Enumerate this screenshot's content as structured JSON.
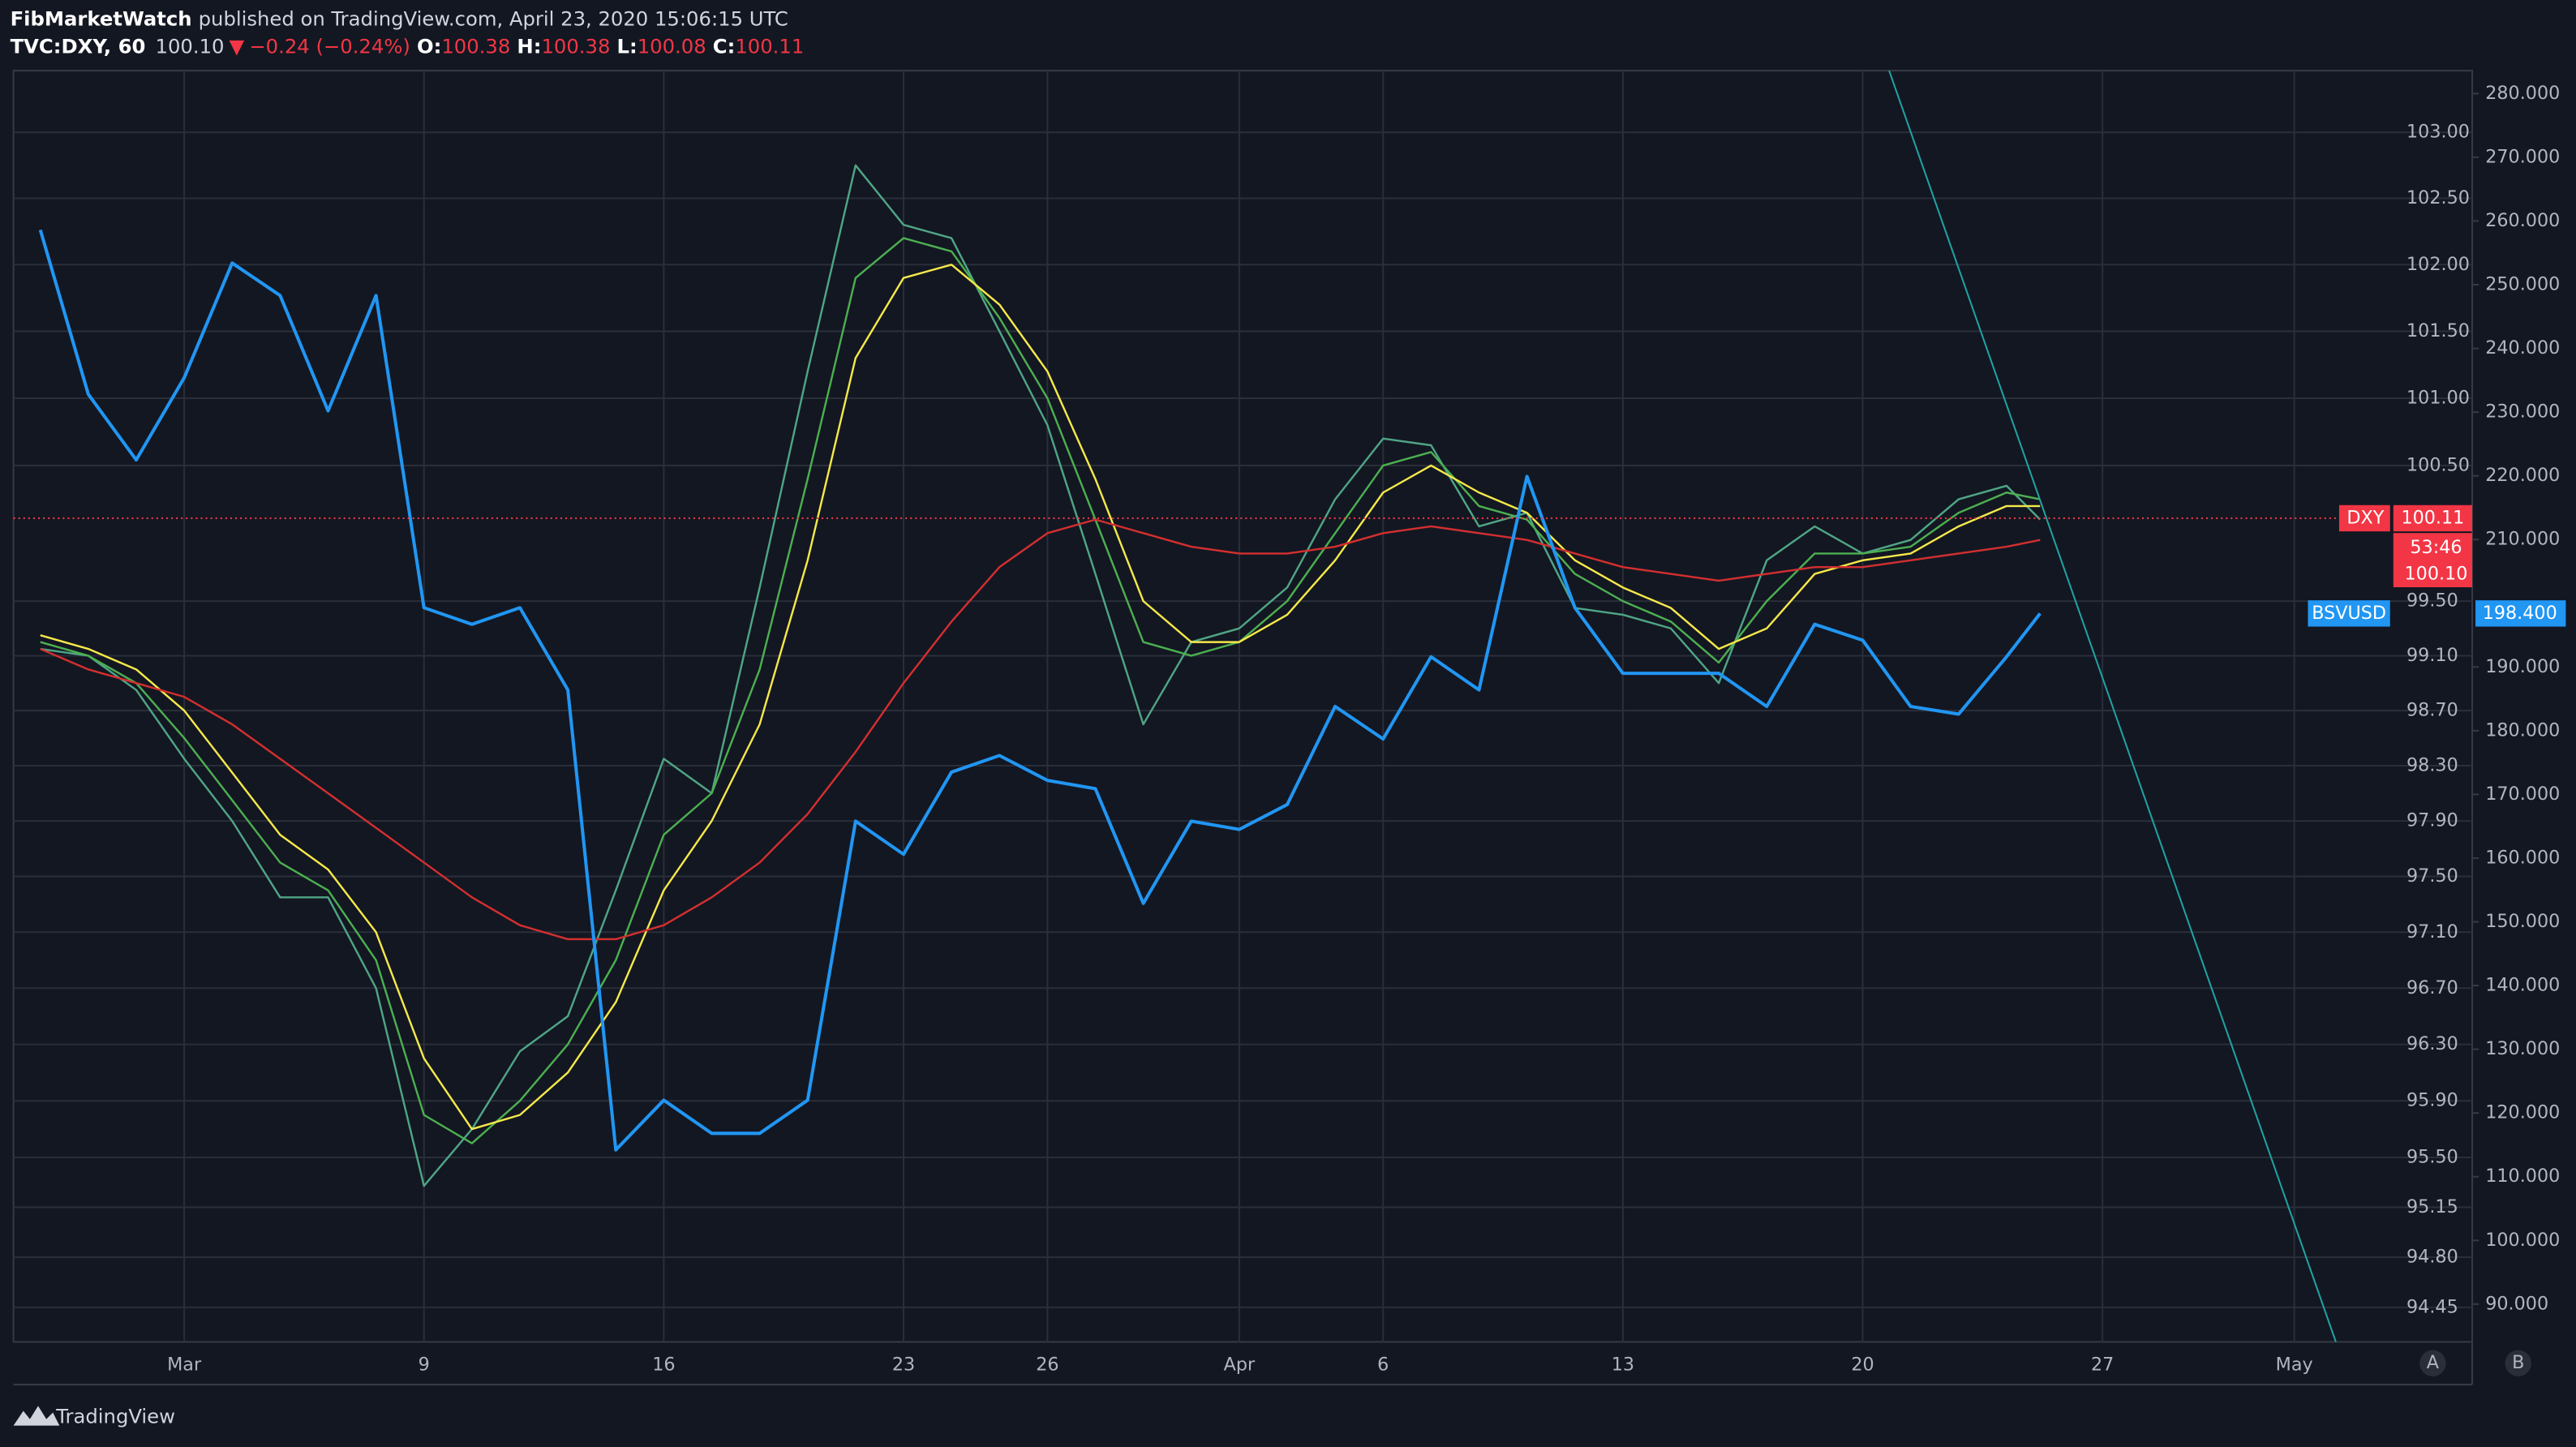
{
  "header": {
    "author": "FibMarketWatch",
    "published": "published on TradingView.com, April 23, 2020 15:06:15 UTC",
    "symbol": "TVC:DXY, 60",
    "last": "100.10",
    "change": "−0.24 (−0.24%)",
    "fields": [
      {
        "label": "O:",
        "value": "100.38"
      },
      {
        "label": "H:",
        "value": "100.38"
      },
      {
        "label": "L:",
        "value": "100.08"
      },
      {
        "label": "C:",
        "value": "100.11"
      }
    ]
  },
  "chart_data": {
    "type": "line",
    "x": [
      -3,
      -2,
      -1,
      0,
      1,
      2,
      3,
      4,
      5,
      6,
      7,
      8,
      9,
      10,
      11,
      12,
      13,
      14,
      15,
      16,
      17,
      18,
      19,
      20,
      21,
      22,
      23,
      24,
      25,
      26,
      27,
      28,
      29,
      30,
      31,
      32,
      33,
      34,
      35,
      36,
      37,
      38,
      38.7
    ],
    "xlim": [
      -3.56,
      47.71
    ],
    "xticks": [
      {
        "value": 0,
        "label": "Mar"
      },
      {
        "value": 5,
        "label": "9"
      },
      {
        "value": 10,
        "label": "16"
      },
      {
        "value": 15,
        "label": "23"
      },
      {
        "value": 18,
        "label": "26"
      },
      {
        "value": 22,
        "label": "Apr"
      },
      {
        "value": 25,
        "label": "6"
      },
      {
        "value": 30,
        "label": "13"
      },
      {
        "value": 35,
        "label": "20"
      },
      {
        "value": 40,
        "label": "27"
      },
      {
        "value": 44,
        "label": "May"
      }
    ],
    "ylim": [
      94.21,
      103.47
    ],
    "log_y": true,
    "yticks": [
      {
        "value": 103,
        "label": "103.00"
      },
      {
        "value": 102.5,
        "label": "102.50"
      },
      {
        "value": 102,
        "label": "102.00"
      },
      {
        "value": 101.5,
        "label": "101.50"
      },
      {
        "value": 101,
        "label": "101.00"
      },
      {
        "value": 100.5,
        "label": "100.50"
      },
      {
        "value": 99.5,
        "label": "99.50"
      },
      {
        "value": 99.1,
        "label": "99.10"
      },
      {
        "value": 98.7,
        "label": "98.70"
      },
      {
        "value": 98.3,
        "label": "98.30"
      },
      {
        "value": 97.9,
        "label": "97.90"
      },
      {
        "value": 97.5,
        "label": "97.50"
      },
      {
        "value": 97.1,
        "label": "97.10"
      },
      {
        "value": 96.7,
        "label": "96.70"
      },
      {
        "value": 96.3,
        "label": "96.30"
      },
      {
        "value": 95.9,
        "label": "95.90"
      },
      {
        "value": 95.5,
        "label": "95.50"
      },
      95.15,
      {
        "value": 94.8,
        "label": "94.80"
      },
      94.45
    ],
    "y2lim": [
      84.07,
      283.6
    ],
    "y2ticks": [
      {
        "value": 280,
        "label": "280.000"
      },
      {
        "value": 270,
        "label": "270.000"
      },
      {
        "value": 260,
        "label": "260.000"
      },
      {
        "value": 250,
        "label": "250.000"
      },
      {
        "value": 240,
        "label": "240.000"
      },
      {
        "value": 230,
        "label": "230.000"
      },
      {
        "value": 220,
        "label": "220.000"
      },
      {
        "value": 210,
        "label": "210.000"
      },
      {
        "value": 190,
        "label": "190.000"
      },
      {
        "value": 180,
        "label": "180.000"
      },
      {
        "value": 170,
        "label": "170.000"
      },
      {
        "value": 160,
        "label": "160.000"
      },
      {
        "value": 150,
        "label": "150.000"
      },
      {
        "value": 140,
        "label": "140.000"
      },
      {
        "value": 130,
        "label": "130.000"
      },
      {
        "value": 120,
        "label": "120.000"
      },
      {
        "value": 110,
        "label": "110.000"
      },
      {
        "value": 100,
        "label": "100.000"
      },
      {
        "value": 90,
        "label": "90.000"
      }
    ],
    "grid": true,
    "series": [
      {
        "name": "DXY",
        "color": "#4fa585",
        "values": [
          99.15,
          99.1,
          98.85,
          98.35,
          97.9,
          97.35,
          97.35,
          96.7,
          95.3,
          95.7,
          96.25,
          96.5,
          97.4,
          98.35,
          98.1,
          99.6,
          101.2,
          102.75,
          102.3,
          102.2,
          101.5,
          100.8,
          99.7,
          98.6,
          99.2,
          99.3,
          99.6,
          100.25,
          100.7,
          100.65,
          100.05,
          100.15,
          99.45,
          99.4,
          99.3,
          98.9,
          99.8,
          100.05,
          99.85,
          99.95,
          100.25,
          100.35,
          100.1
        ]
      },
      {
        "color": "#4caf50",
        "values": [
          99.2,
          99.1,
          98.9,
          98.5,
          98.05,
          97.6,
          97.4,
          96.9,
          95.8,
          95.6,
          95.9,
          96.3,
          96.9,
          97.8,
          98.1,
          99.0,
          100.4,
          101.9,
          102.2,
          102.1,
          101.6,
          101.0,
          100.1,
          99.2,
          99.1,
          99.2,
          99.5,
          100.0,
          100.5,
          100.6,
          100.2,
          100.1,
          99.7,
          99.5,
          99.35,
          99.05,
          99.5,
          99.85,
          99.85,
          99.9,
          100.15,
          100.3,
          100.25
        ]
      },
      {
        "color": "#f5e84a",
        "values": [
          99.25,
          99.15,
          99.0,
          98.7,
          98.25,
          97.8,
          97.55,
          97.1,
          96.2,
          95.7,
          95.8,
          96.1,
          96.6,
          97.4,
          97.9,
          98.6,
          99.8,
          101.3,
          101.9,
          102.0,
          101.7,
          101.2,
          100.4,
          99.5,
          99.2,
          99.2,
          99.4,
          99.8,
          100.3,
          100.5,
          100.3,
          100.15,
          99.8,
          99.6,
          99.45,
          99.15,
          99.3,
          99.7,
          99.8,
          99.85,
          100.05,
          100.2,
          100.2
        ]
      },
      {
        "color": "#d32f2f",
        "values": [
          99.15,
          99.0,
          98.9,
          98.8,
          98.6,
          98.35,
          98.1,
          97.85,
          97.6,
          97.35,
          97.15,
          97.05,
          97.05,
          97.15,
          97.35,
          97.6,
          97.95,
          98.4,
          98.9,
          99.35,
          99.75,
          100.0,
          100.1,
          100.0,
          99.9,
          99.85,
          99.85,
          99.9,
          100.0,
          100.05,
          100.0,
          99.95,
          99.85,
          99.75,
          99.7,
          99.65,
          99.7,
          99.75,
          99.75,
          99.8,
          99.85,
          99.9,
          99.95
        ]
      },
      {
        "name": "BSVUSD",
        "color": "#2196f3",
        "axis": "y2",
        "values": [
          258.6,
          232.8,
          222.5,
          235.4,
          253.4,
          248.3,
          230.2,
          248.3,
          199.3,
          196.7,
          199.3,
          186.4,
          114.2,
          122.0,
          116.8,
          116.8,
          122.0,
          165.8,
          160.6,
          173.5,
          176.1,
          172.2,
          170.9,
          152.9,
          165.8,
          164.5,
          168.4,
          183.8,
          178.7,
          191.6,
          186.4,
          219.9,
          199.3,
          189.0,
          189.0,
          189.0,
          183.8,
          196.7,
          194.2,
          183.8,
          182.6,
          191.6,
          198.4
        ]
      }
    ],
    "dxy_tag": {
      "name": "DXY",
      "value": 100.11,
      "countdown": "53:46",
      "last": {
        "value": 100.1,
        "label": "100.10"
      },
      "color": "#f23645"
    },
    "bsv_tag": {
      "name": "BSVUSD",
      "value": {
        "value": 198.4,
        "label": "198.400"
      },
      "color": "#2196f3"
    },
    "scale_buttons": [
      "A",
      "B"
    ]
  },
  "footer": {
    "brand": "TradingView"
  }
}
